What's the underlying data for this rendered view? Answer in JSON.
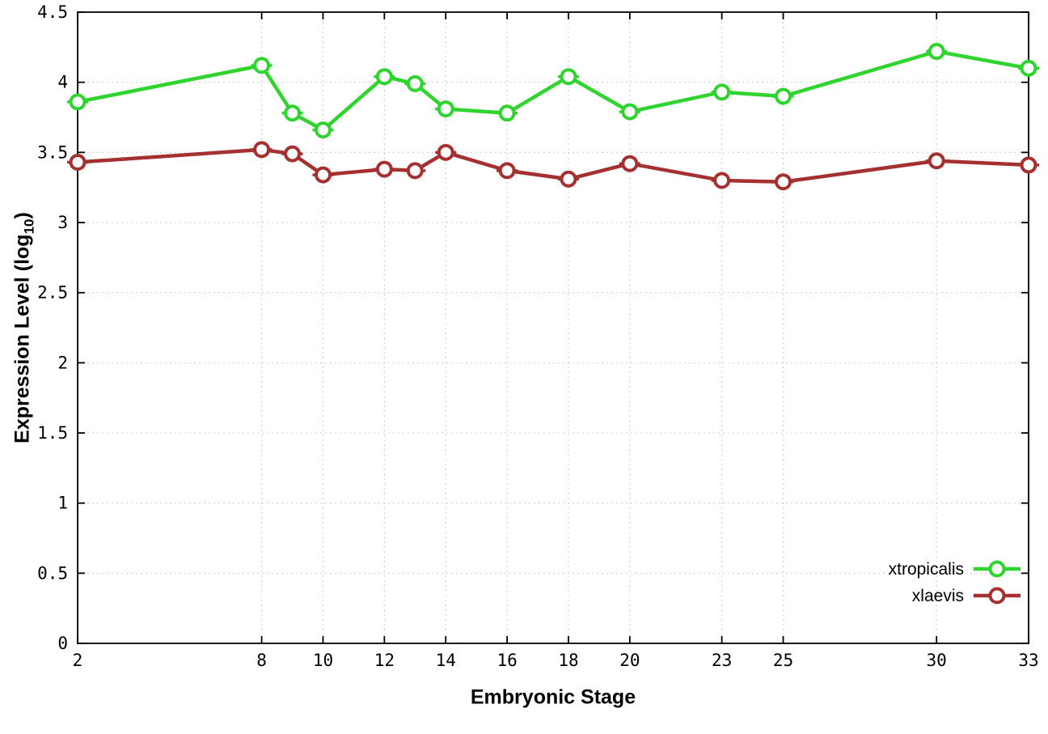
{
  "chart_data": {
    "type": "line",
    "title": "",
    "xlabel": "Embryonic Stage",
    "ylabel_main": "Expression Level (log",
    "ylabel_sub": "10",
    "ylabel_suffix": ")",
    "xlim": [
      2,
      33
    ],
    "ylim": [
      0,
      4.5
    ],
    "xticks": [
      2,
      8,
      10,
      12,
      14,
      16,
      18,
      20,
      23,
      25,
      30,
      33
    ],
    "yticks": [
      0,
      0.5,
      1,
      1.5,
      2,
      2.5,
      3,
      3.5,
      4,
      4.5
    ],
    "grid": true,
    "grid_color": "#cccccc",
    "axis_color": "#000000",
    "legend_position": "bottom-right",
    "x": [
      2,
      8,
      9,
      10,
      12,
      13,
      14,
      16,
      18,
      20,
      23,
      25,
      30,
      33
    ],
    "series": [
      {
        "name": "xtropicalis",
        "color": "#2fd42f",
        "values": [
          3.86,
          4.12,
          3.78,
          3.66,
          4.04,
          3.99,
          3.81,
          3.78,
          4.04,
          3.79,
          3.93,
          3.9,
          4.22,
          4.1
        ]
      },
      {
        "name": "xlaevis",
        "color": "#a53030",
        "values": [
          3.43,
          3.52,
          3.49,
          3.34,
          3.38,
          3.37,
          3.5,
          3.37,
          3.31,
          3.42,
          3.3,
          3.29,
          3.44,
          3.41
        ]
      }
    ]
  }
}
